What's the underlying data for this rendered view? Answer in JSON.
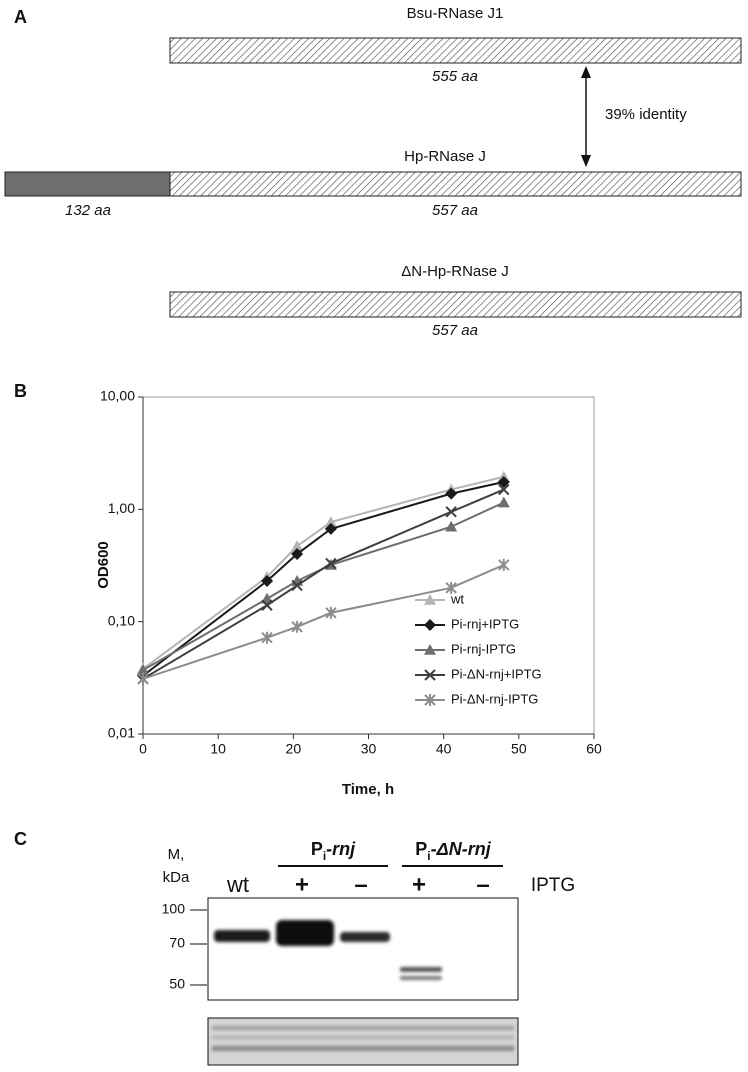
{
  "panel_a": {
    "label": "A",
    "identity": "39% identity",
    "proteins": [
      {
        "name": "Bsu-RNase J1",
        "length": "555 aa"
      },
      {
        "name": "Hp-RNase J",
        "n_length": "132 aa",
        "length": "557 aa"
      },
      {
        "name": "ΔN-Hp-RNase J",
        "length": "557 aa"
      }
    ]
  },
  "panel_b_label": "B",
  "chart_data": {
    "type": "line",
    "x_label": "Time, h",
    "y_label": "OD600",
    "y_scale": "log",
    "x": [
      0,
      16.5,
      20.5,
      25,
      41,
      48
    ],
    "xlim": [
      0,
      60
    ],
    "xticks": [
      0,
      10,
      20,
      30,
      40,
      50,
      60
    ],
    "ylim": [
      0.01,
      10
    ],
    "yticks": [
      {
        "value": 0.01,
        "label": "0,01"
      },
      {
        "value": 0.1,
        "label": "0,10"
      },
      {
        "value": 1,
        "label": "1,00"
      },
      {
        "value": 10,
        "label": "10,00"
      }
    ],
    "legend": "right",
    "series": [
      {
        "name": "wt",
        "color": "#b4b4b4",
        "marker": "triangle",
        "values": [
          0.038,
          0.25,
          0.47,
          0.77,
          1.5,
          1.95
        ]
      },
      {
        "name": "Pi-rnj+IPTG",
        "color": "#1a1a1a",
        "marker": "diamond",
        "values": [
          0.033,
          0.23,
          0.4,
          0.67,
          1.38,
          1.75
        ]
      },
      {
        "name": "Pi-rnj-IPTG",
        "color": "#6e6e6e",
        "marker": "triangle",
        "values": [
          0.037,
          0.16,
          0.23,
          0.32,
          0.7,
          1.15
        ]
      },
      {
        "name": "Pi-ΔN-rnj+IPTG",
        "color": "#3e3e3e",
        "marker": "x",
        "values": [
          0.031,
          0.14,
          0.21,
          0.33,
          0.95,
          1.5
        ]
      },
      {
        "name": "Pi-ΔN-rnj-IPTG",
        "color": "#8c8c8c",
        "marker": "asterisk",
        "values": [
          0.031,
          0.072,
          0.09,
          0.12,
          0.2,
          0.32
        ]
      }
    ]
  },
  "panel_c": {
    "label": "C",
    "marker_title": [
      "M,",
      "kDa"
    ],
    "groups": [
      {
        "main": "P",
        "sub": "i",
        "rest": "-rnj"
      },
      {
        "main": "P",
        "sub": "i",
        "rest": "-ΔN-rnj"
      }
    ],
    "lanes": [
      "wt",
      "+",
      "–",
      "+",
      "–"
    ],
    "treatment": "IPTG",
    "markers": [
      "100",
      "70",
      "50"
    ]
  }
}
